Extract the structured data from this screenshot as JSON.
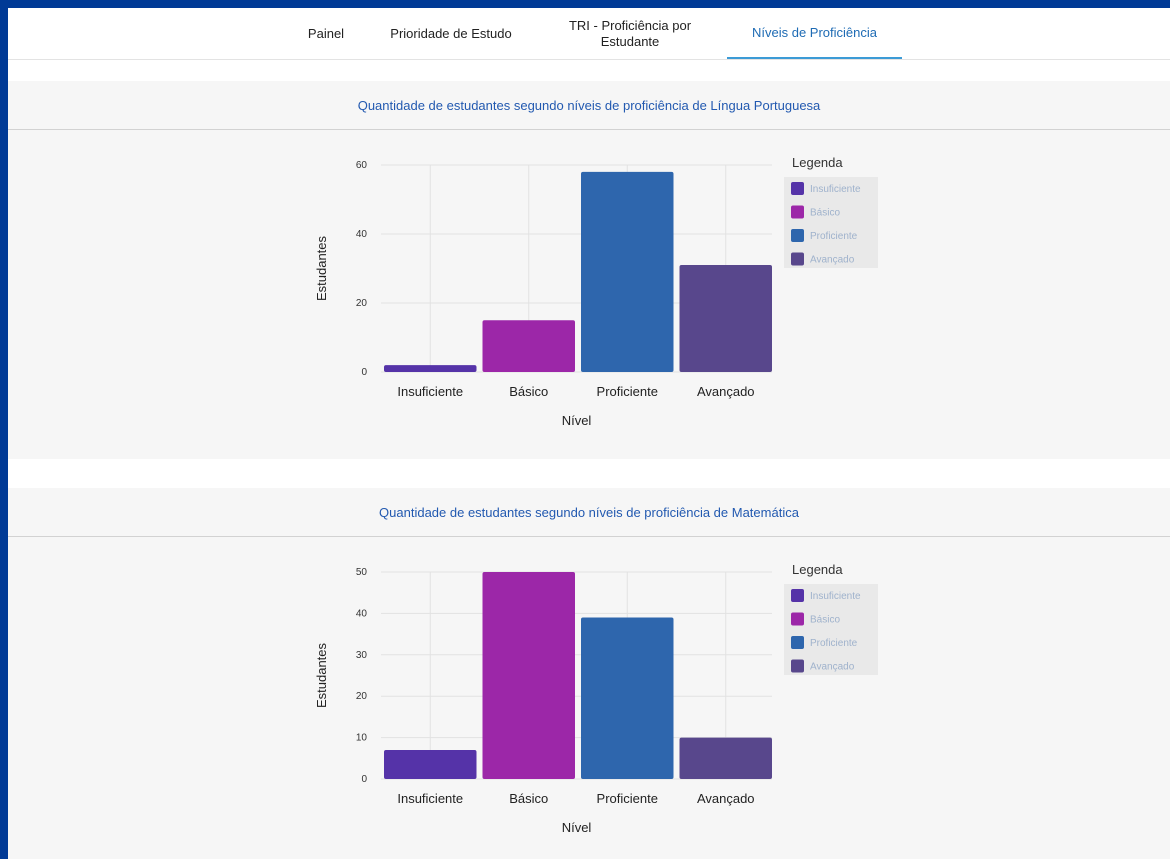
{
  "tabs": [
    {
      "label": "Painel",
      "active": false
    },
    {
      "label": "Prioridade de Estudo",
      "active": false
    },
    {
      "label": "TRI - Proficiência por Estudante",
      "active": false
    },
    {
      "label": "Níveis de Proficiência",
      "active": true
    }
  ],
  "colors": {
    "page_bg": "#003a96",
    "active_tab": "#1e6bb4",
    "insuficiente": "#5533a8",
    "basico": "#9c27a8",
    "proficiente": "#2e66ad",
    "avancado": "#58478c"
  },
  "chart_data": [
    {
      "type": "bar",
      "title": "Quantidade de estudantes segundo níveis de proficiência de Língua Portuguesa",
      "categories": [
        "Insuficiente",
        "Básico",
        "Proficiente",
        "Avançado"
      ],
      "values": [
        2,
        15,
        58,
        31
      ],
      "xlabel": "Nível",
      "ylabel": "Estudantes",
      "ylim": [
        0,
        60
      ],
      "yticks": [
        0,
        20,
        40,
        60
      ],
      "legend_title": "Legenda",
      "legend": [
        "Insuficiente",
        "Básico",
        "Proficiente",
        "Avançado"
      ],
      "legend_position": "right",
      "grid": true
    },
    {
      "type": "bar",
      "title": "Quantidade de estudantes segundo níveis de proficiência de Matemática",
      "categories": [
        "Insuficiente",
        "Básico",
        "Proficiente",
        "Avançado"
      ],
      "values": [
        7,
        50,
        39,
        10
      ],
      "xlabel": "Nível",
      "ylabel": "Estudantes",
      "ylim": [
        0,
        50
      ],
      "yticks": [
        0,
        10,
        20,
        30,
        40,
        50
      ],
      "legend_title": "Legenda",
      "legend": [
        "Insuficiente",
        "Básico",
        "Proficiente",
        "Avançado"
      ],
      "legend_position": "right",
      "grid": true
    }
  ]
}
